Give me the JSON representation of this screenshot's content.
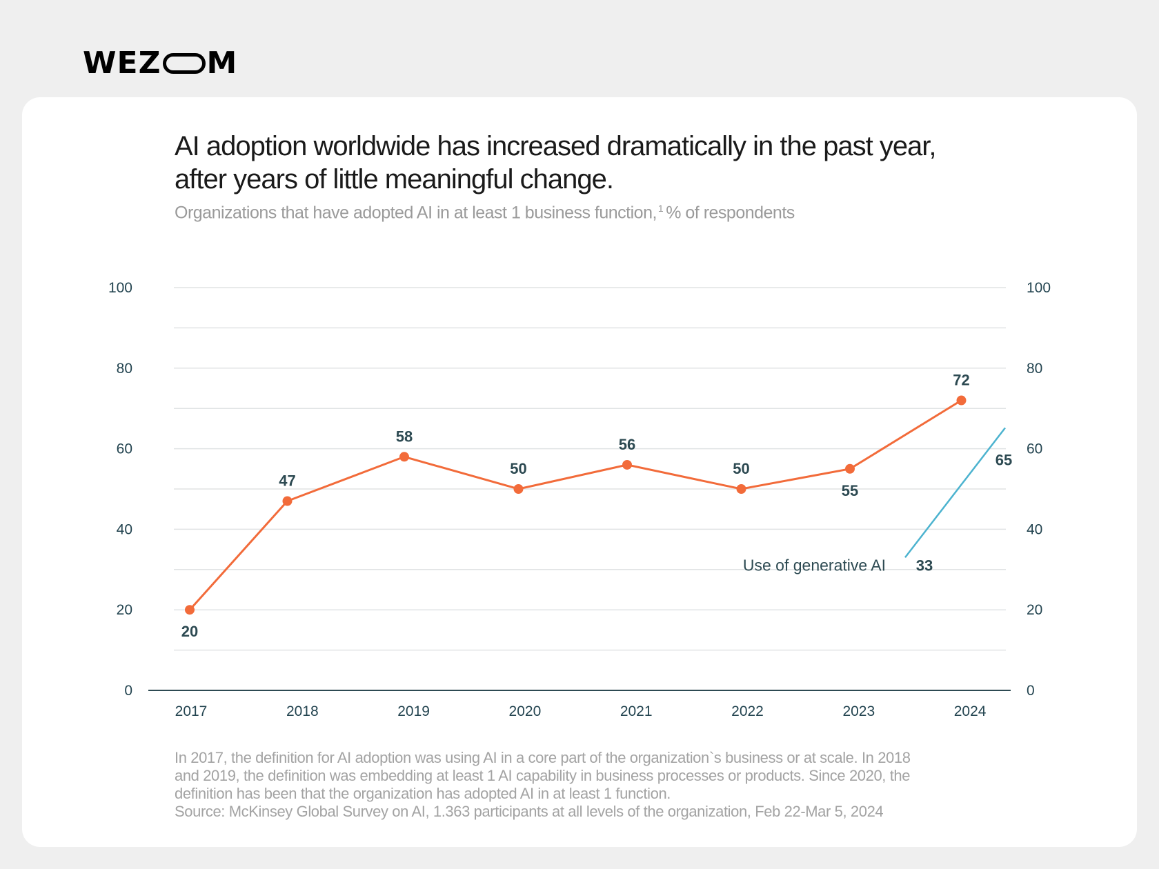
{
  "brand": {
    "logo_text": "WEZOOM",
    "logo_left": "WEZ",
    "logo_right": "M"
  },
  "header": {
    "title_line1": "AI adoption worldwide has increased dramatically in the past year,",
    "title_line2": "after years of little meaningful change.",
    "subtitle_main": "Organizations that have adopted AI in at least 1 business function,",
    "subtitle_sup": "1",
    "subtitle_tail": "% of respondents"
  },
  "footer": {
    "line1": "In 2017, the definition for AI adoption was using AI in a core part of the organization`s business or at scale. In 2018",
    "line2": "and 2019, the definition was embedding at least 1 AI capability in business processes or products. Since 2020, the",
    "line3": "definition has been that the organization has adopted AI in at least 1 function.",
    "source": "Source: McKinsey Global Survey on AI, 1.363 participants at all levels of the organization, Feb 22-Mar 5, 2024"
  },
  "chart_data": {
    "type": "line",
    "title": "AI adoption worldwide has increased dramatically in the past year, after years of little meaningful change.",
    "subtitle": "Organizations that have adopted AI in at least 1 business function, % of respondents",
    "ylim": [
      0,
      100
    ],
    "yticks": [
      0,
      20,
      40,
      60,
      80,
      100
    ],
    "grid": true,
    "x_tick_labels": [
      "2017",
      "2018",
      "2019",
      "2020",
      "2021",
      "2022",
      "2023",
      "2024"
    ],
    "series": [
      {
        "name": "",
        "color": "#f26b3a",
        "x": [
          2017,
          2018,
          2019,
          2020,
          2021,
          2022,
          2023,
          2024
        ],
        "values": [
          20,
          47,
          58,
          50,
          56,
          50,
          55,
          72
        ],
        "labels": [
          "20",
          "47",
          "58",
          "50",
          "56",
          "50",
          "55",
          "72"
        ]
      },
      {
        "name": "Use of generative AI",
        "color": "#4cb3cf",
        "x": [
          2023,
          2024
        ],
        "values": [
          33,
          65
        ],
        "labels": [
          "33",
          "65"
        ]
      }
    ]
  }
}
